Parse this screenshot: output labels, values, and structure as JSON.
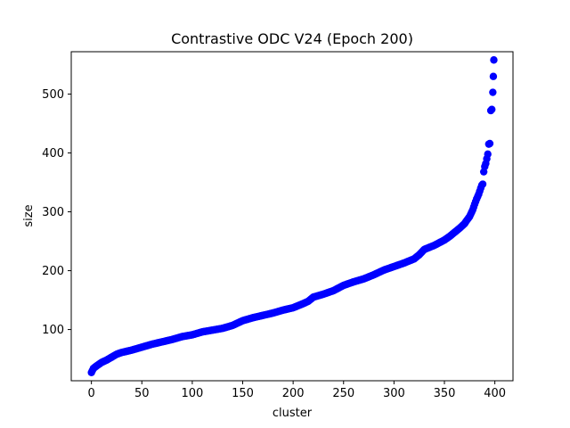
{
  "chart_data": {
    "type": "scatter",
    "title": "Contrastive ODC V24 (Epoch 200)",
    "xlabel": "cluster",
    "ylabel": "size",
    "xlim": [
      -20,
      418
    ],
    "ylim": [
      13,
      572
    ],
    "xticks": [
      0,
      50,
      100,
      150,
      200,
      250,
      300,
      350,
      400
    ],
    "yticks": [
      100,
      200,
      300,
      400,
      500
    ],
    "grid": false,
    "legend": "none",
    "marker_color": "#0000ff",
    "anchors_x": [
      0,
      2,
      5,
      10,
      15,
      20,
      25,
      30,
      40,
      50,
      60,
      70,
      80,
      90,
      100,
      110,
      120,
      130,
      140,
      150,
      160,
      170,
      180,
      190,
      200,
      210,
      215,
      220,
      230,
      240,
      250,
      260,
      270,
      280,
      290,
      300,
      310,
      320,
      325,
      330,
      340,
      350,
      355,
      360,
      365,
      370,
      372,
      375,
      378,
      380,
      382,
      384,
      386
    ],
    "anchors_y": [
      27,
      34,
      38,
      44,
      48,
      53,
      58,
      61,
      65,
      70,
      75,
      79,
      83,
      88,
      91,
      96,
      99,
      102,
      107,
      115,
      120,
      124,
      128,
      133,
      137,
      144,
      148,
      155,
      160,
      166,
      175,
      181,
      186,
      193,
      201,
      207,
      213,
      220,
      227,
      236,
      243,
      252,
      258,
      265,
      272,
      280,
      285,
      292,
      303,
      313,
      322,
      330,
      340
    ],
    "outliers": [
      {
        "x": 387,
        "y": 345
      },
      {
        "x": 388,
        "y": 347
      },
      {
        "x": 389,
        "y": 368
      },
      {
        "x": 390,
        "y": 377
      },
      {
        "x": 391,
        "y": 382
      },
      {
        "x": 392,
        "y": 390
      },
      {
        "x": 393,
        "y": 398
      },
      {
        "x": 394,
        "y": 415
      },
      {
        "x": 395,
        "y": 416
      },
      {
        "x": 396,
        "y": 472
      },
      {
        "x": 397,
        "y": 474
      },
      {
        "x": 398,
        "y": 503
      },
      {
        "x": 398.5,
        "y": 530
      },
      {
        "x": 399,
        "y": 558
      }
    ]
  }
}
